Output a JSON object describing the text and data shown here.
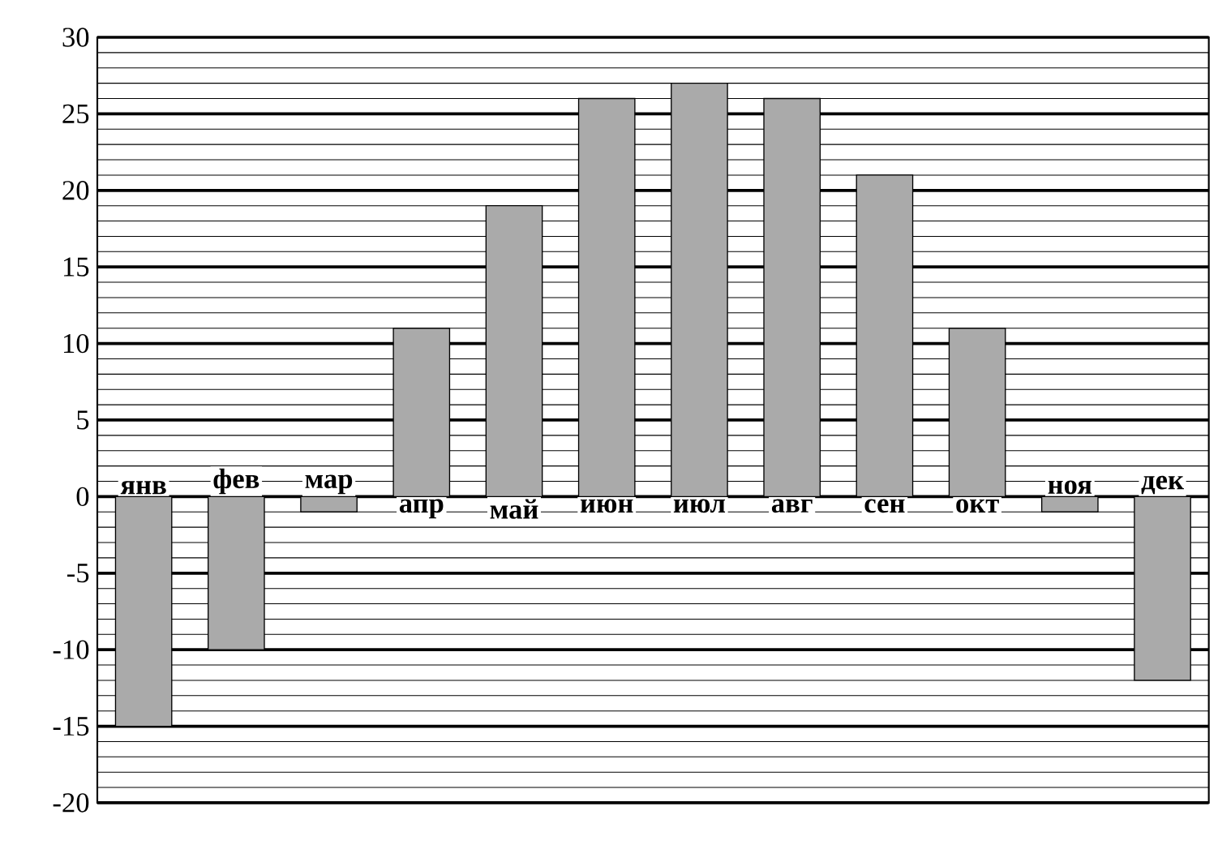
{
  "chart_data": {
    "type": "bar",
    "categories": [
      "янв",
      "фев",
      "мар",
      "апр",
      "май",
      "июн",
      "июл",
      "авг",
      "сен",
      "окт",
      "ноя",
      "дек"
    ],
    "values": [
      -15,
      -10,
      -1,
      11,
      19,
      26,
      27,
      26,
      21,
      11,
      -1,
      -12
    ],
    "color": "#aaaaaa",
    "ylim": [
      -20,
      30
    ],
    "yticks": [
      -20,
      {
        "value": -19,
        "label": null
      },
      {
        "value": -18,
        "label": null
      },
      {
        "value": -17,
        "label": null
      },
      {
        "value": -16,
        "label": null
      },
      -15,
      {
        "value": -14,
        "label": null
      },
      {
        "value": -13,
        "label": null
      },
      {
        "value": -12,
        "label": null
      },
      {
        "value": -11,
        "label": null
      },
      -10,
      {
        "value": -9,
        "label": null
      },
      {
        "value": -8,
        "label": null
      },
      {
        "value": -7,
        "label": null
      },
      {
        "value": -6,
        "label": null
      },
      -5,
      {
        "value": -4,
        "label": null
      },
      {
        "value": -3,
        "label": null
      },
      {
        "value": -2,
        "label": null
      },
      {
        "value": -1,
        "label": null
      },
      0,
      {
        "value": 1,
        "label": null
      },
      {
        "value": 2,
        "label": null
      },
      {
        "value": 3,
        "label": null
      },
      {
        "value": 4,
        "label": null
      },
      5,
      {
        "value": 6,
        "label": null
      },
      {
        "value": 7,
        "label": null
      },
      {
        "value": 8,
        "label": null
      },
      {
        "value": 9,
        "label": null
      },
      10,
      {
        "value": 11,
        "label": null
      },
      {
        "value": 12,
        "label": null
      },
      {
        "value": 13,
        "label": null
      },
      {
        "value": 14,
        "label": null
      },
      15,
      {
        "value": 16,
        "label": null
      },
      {
        "value": 17,
        "label": null
      },
      {
        "value": 18,
        "label": null
      },
      {
        "value": 19,
        "label": null
      },
      20,
      {
        "value": 21,
        "label": null
      },
      {
        "value": 22,
        "label": null
      },
      {
        "value": 23,
        "label": null
      },
      {
        "value": 24,
        "label": null
      },
      25,
      {
        "value": 26,
        "label": null
      },
      {
        "value": 27,
        "label": null
      },
      {
        "value": 28,
        "label": null
      },
      {
        "value": 29,
        "label": null
      },
      30
    ],
    "grid": "y"
  }
}
